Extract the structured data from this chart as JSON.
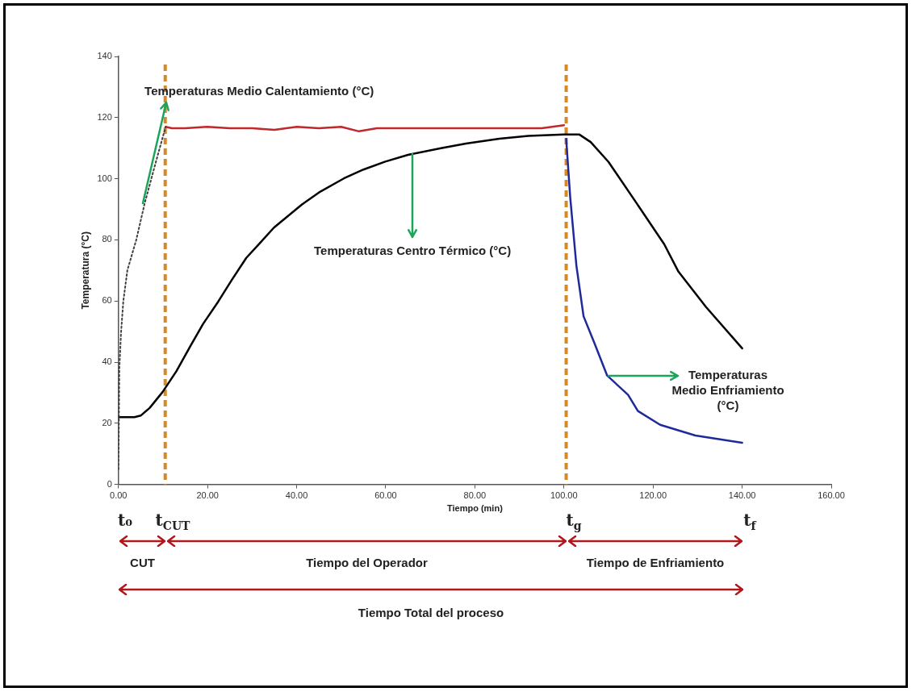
{
  "chart_data": {
    "type": "line",
    "xlabel": "Tiempo (min)",
    "ylabel": "Temperatura (°C)",
    "xlim": [
      0,
      160
    ],
    "xticks": [
      {
        "value": 0,
        "label": "0.00"
      },
      {
        "value": 20,
        "label": "20.00"
      },
      {
        "value": 40,
        "label": "40.00"
      },
      {
        "value": 60,
        "label": "60.00"
      },
      {
        "value": 80,
        "label": "80.00"
      },
      {
        "value": 100,
        "label": "100.00"
      },
      {
        "value": 120,
        "label": "120.00"
      },
      {
        "value": 140,
        "label": "140.00"
      },
      {
        "value": 160,
        "label": "160.00"
      }
    ],
    "ylim": [
      0,
      140
    ],
    "yticks": [
      0,
      20,
      40,
      60,
      80,
      100,
      120,
      140
    ],
    "grid": false,
    "legend": false,
    "marker": "none",
    "series": [
      {
        "color": "#404040",
        "line_style": "dotted",
        "x": [
          0,
          0.2,
          0.6,
          1.1,
          2,
          4,
          5.9,
          8.5,
          10.6
        ],
        "values": [
          5,
          38,
          50,
          60,
          70,
          80,
          92,
          106,
          117
        ]
      },
      {
        "color": "#c0282a",
        "x": [
          10.6,
          12,
          15,
          20,
          25,
          30,
          35,
          40,
          45,
          50,
          54,
          58,
          65,
          70,
          80,
          90,
          95,
          100
        ],
        "values": [
          117,
          116.5,
          116.5,
          117,
          116.5,
          116.5,
          116,
          117,
          116.5,
          117,
          115.5,
          116.5,
          116.5,
          116.5,
          116.5,
          116.5,
          116.5,
          117.5
        ]
      },
      {
        "color": "#000000",
        "x": [
          0,
          2,
          3.6,
          5,
          7,
          9.9,
          13,
          16.2,
          19,
          22.4,
          25.5,
          28.7,
          31.8,
          34.9,
          41.2,
          45,
          50.6,
          55,
          59.9,
          65,
          72.4,
          78,
          85.5,
          92,
          100,
          103.4,
          106,
          110,
          116.3,
          122.5,
          125.7,
          131.9,
          140
        ],
        "values": [
          22,
          22,
          22,
          22.5,
          25,
          30.2,
          37,
          45.4,
          52.5,
          59.8,
          67,
          74.1,
          79,
          84,
          91.6,
          95.5,
          100.1,
          103,
          105.6,
          107.8,
          110,
          111.5,
          113.1,
          114,
          114.5,
          114.5,
          112,
          105.5,
          92,
          78.6,
          69.6,
          58,
          44.5
        ]
      },
      {
        "color": "#1f2a9a",
        "x": [
          100.5,
          101.4,
          102.8,
          104.4,
          106.9,
          109.7,
          114.4,
          116.6,
          121.6,
          129.5,
          140
        ],
        "values": [
          113,
          94,
          71.5,
          55,
          46,
          35.6,
          29.3,
          24,
          19.5,
          16,
          13.6
        ]
      }
    ],
    "ref_lines": [
      {
        "axis": "x",
        "value": 10.5,
        "color": "#d4892a",
        "line_style": "dashed"
      },
      {
        "axis": "x",
        "value": 100.5,
        "color": "#d4892a",
        "line_style": "dashed"
      }
    ],
    "annotations": [
      {
        "text": "Temperaturas Medio Calentamiento (°C)",
        "x": 5.5,
        "y": 92
      },
      {
        "text": "Temperaturas Centro Térmico (°C)",
        "x": 66,
        "y": 108
      },
      {
        "text": "Temperaturas Medio Enfriamiento (°C)",
        "x": 110,
        "y": 35.6
      },
      "t₀",
      "t$_{CUT}$",
      "t$_{g}$",
      "t$_{f}$",
      "CUT",
      "Tiempo del Operador",
      "Tiempo de Enfriamiento",
      "Tiempo Total del proceso"
    ]
  }
}
